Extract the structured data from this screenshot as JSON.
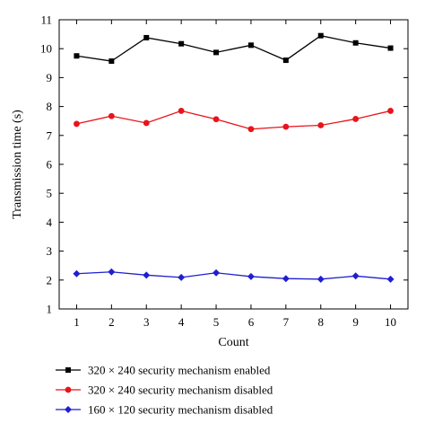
{
  "chart_data": {
    "type": "line",
    "title": "",
    "xlabel": "Count",
    "ylabel": "Transmission time (s)",
    "x": [
      1,
      2,
      3,
      4,
      5,
      6,
      7,
      8,
      9,
      10
    ],
    "xlim": [
      0.5,
      10.5
    ],
    "ylim": [
      1,
      11
    ],
    "yticks": [
      1,
      2,
      3,
      4,
      5,
      6,
      7,
      8,
      9,
      10,
      11
    ],
    "grid": false,
    "legend_position": "bottom",
    "series": [
      {
        "name": "320 × 240 security mechanism enabled",
        "color": "#000000",
        "marker": "square",
        "values": [
          9.75,
          9.57,
          10.38,
          10.17,
          9.87,
          10.12,
          9.6,
          10.45,
          10.2,
          10.02
        ]
      },
      {
        "name": "320 × 240 security mechanism disabled",
        "color": "#e8141b",
        "marker": "circle",
        "values": [
          7.4,
          7.67,
          7.43,
          7.85,
          7.56,
          7.22,
          7.3,
          7.35,
          7.57,
          7.85
        ]
      },
      {
        "name": "160 × 120 security mechanism disabled",
        "color": "#1f1fd1",
        "marker": "diamond",
        "values": [
          2.22,
          2.28,
          2.17,
          2.09,
          2.25,
          2.12,
          2.05,
          2.03,
          2.14,
          2.03
        ]
      }
    ]
  }
}
